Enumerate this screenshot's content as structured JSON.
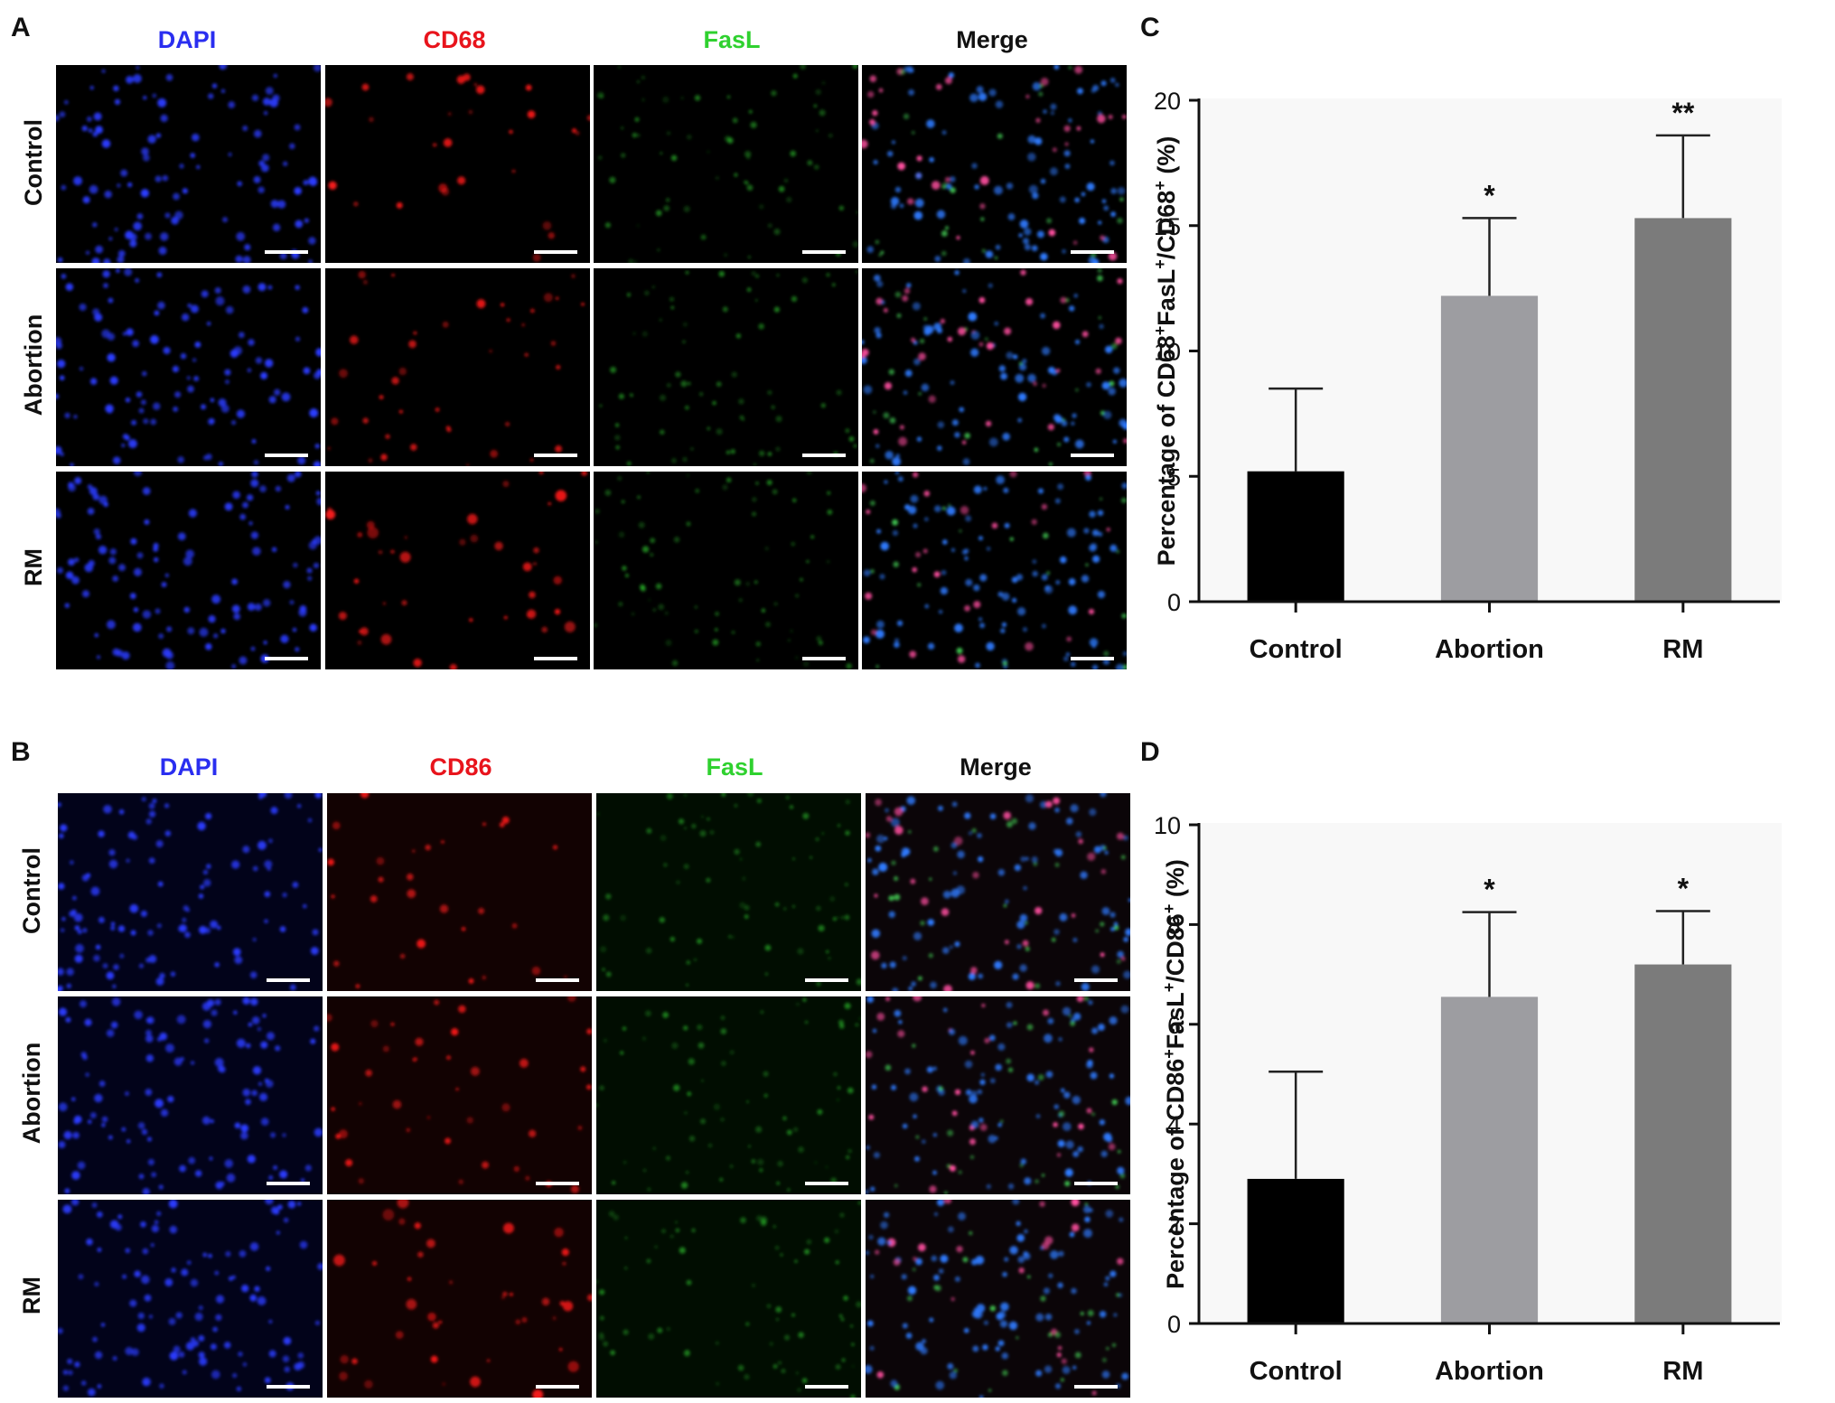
{
  "panels": {
    "A": {
      "letter": "A",
      "channels": [
        {
          "label": "DAPI",
          "color": "#2a2ef0"
        },
        {
          "label": "CD68",
          "color": "#e8141c"
        },
        {
          "label": "FasL",
          "color": "#2fd12f"
        },
        {
          "label": "Merge",
          "color": "#111111"
        }
      ],
      "rows": [
        "Control",
        "Abortion",
        "RM"
      ]
    },
    "B": {
      "letter": "B",
      "channels": [
        {
          "label": "DAPI",
          "color": "#2a2ef0"
        },
        {
          "label": "CD86",
          "color": "#e8141c"
        },
        {
          "label": "FasL",
          "color": "#2fd12f"
        },
        {
          "label": "Merge",
          "color": "#111111"
        }
      ],
      "rows": [
        "Control",
        "Abortion",
        "RM"
      ]
    }
  },
  "chart_data": [
    {
      "letter": "C",
      "type": "bar",
      "categories": [
        "Control",
        "Abortion",
        "RM"
      ],
      "values": [
        5.2,
        12.2,
        15.3
      ],
      "errors": [
        3.3,
        3.1,
        3.3
      ],
      "significance": [
        "",
        "*",
        "**"
      ],
      "bar_colors": [
        "#000000",
        "#9d9da1",
        "#7b7b7b"
      ],
      "ylabel_parts": [
        "Percentage of CD68",
        "+",
        "FasL",
        "+",
        "/CD68",
        "+",
        " (%)"
      ],
      "ylim": [
        0,
        20
      ],
      "yticks": [
        0,
        5,
        10,
        15,
        20
      ]
    },
    {
      "letter": "D",
      "type": "bar",
      "categories": [
        "Control",
        "Abortion",
        "RM"
      ],
      "values": [
        2.9,
        6.55,
        7.2
      ],
      "errors": [
        2.15,
        1.7,
        1.07
      ],
      "significance": [
        "",
        "*",
        "*"
      ],
      "bar_colors": [
        "#000000",
        "#9d9da1",
        "#7b7b7b"
      ],
      "ylabel_parts": [
        "Percentage of CD86",
        "+",
        "FasL",
        "+",
        "/CD86",
        "+",
        " (%)"
      ],
      "ylim": [
        0,
        10
      ],
      "yticks": [
        0,
        2,
        4,
        6,
        8,
        10
      ]
    }
  ]
}
